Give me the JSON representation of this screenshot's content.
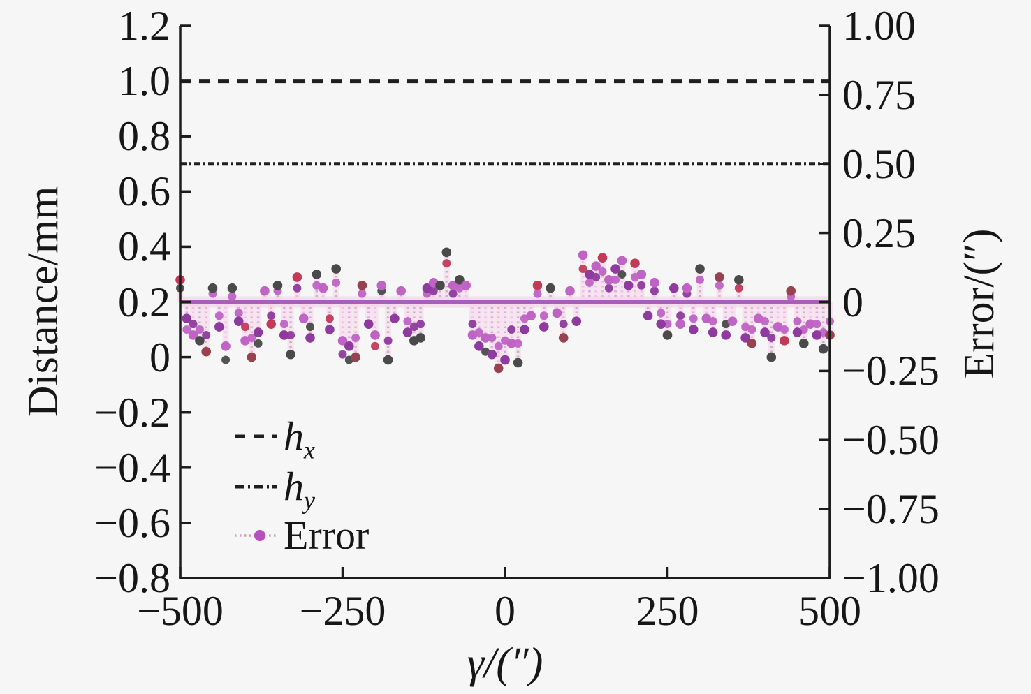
{
  "chart_data": {
    "type": "stem+lines",
    "xlabel": "γ/(″)",
    "ylabel_left": "Distance/mm",
    "ylabel_right": "Error/(″)",
    "xlim": [
      -500,
      500
    ],
    "ylim_left": [
      -0.8,
      1.2
    ],
    "ylim_right": [
      -1.0,
      1.0
    ],
    "grid": "off",
    "legend_position": "lower-left-inside",
    "xtick_labels": [
      "−500",
      "−250",
      "0",
      "250",
      "500"
    ],
    "ytick_labels_left": [
      "1.2",
      "1.0",
      "0.8",
      "0.6",
      "0.4",
      "0.2",
      "0",
      "−0.2",
      "−0.4",
      "−0.6",
      "−0.8"
    ],
    "ytick_labels_right": [
      "1.00",
      "0.75",
      "0.50",
      "0.25",
      "0",
      "−0.25",
      "−0.50",
      "−0.75",
      "−1.00"
    ],
    "hlines": [
      {
        "label": "h_x",
        "value_distance_mm": 1.0,
        "style": "dashed"
      },
      {
        "label": "h_y",
        "value_distance_mm": 0.7,
        "style": "dash-dot"
      }
    ],
    "legend": [
      {
        "main": "h",
        "sub": "x"
      },
      {
        "main": "h",
        "sub": "y"
      },
      {
        "main": "Error",
        "sub": ""
      }
    ],
    "error_stem": {
      "baseline_error_arcsec": 0,
      "note": "points are [gamma_arcsec, error_arcsec_tip, tip_color_index, error_arcsec_secondary, secondary_color_index]",
      "points": [
        [
          -500,
          0.08,
          1,
          0.05,
          0
        ],
        [
          -490,
          -0.06,
          2,
          -0.1,
          3
        ],
        [
          -480,
          -0.12,
          3,
          -0.08,
          2
        ],
        [
          -470,
          -0.14,
          0,
          -0.1,
          3
        ],
        [
          -460,
          -0.18,
          4,
          -0.12,
          2
        ],
        [
          -450,
          0.05,
          0,
          0.03,
          3
        ],
        [
          -440,
          -0.09,
          2,
          -0.05,
          3
        ],
        [
          -430,
          -0.16,
          3,
          -0.21,
          0
        ],
        [
          -420,
          0.05,
          0,
          0.02,
          3
        ],
        [
          -410,
          -0.07,
          2,
          -0.04,
          3
        ],
        [
          -400,
          -0.14,
          3,
          -0.09,
          1
        ],
        [
          -390,
          -0.2,
          4,
          -0.13,
          3
        ],
        [
          -380,
          -0.11,
          2,
          -0.15,
          0
        ],
        [
          -370,
          0.04,
          3,
          null,
          null
        ],
        [
          -360,
          -0.08,
          1,
          -0.05,
          2
        ],
        [
          -350,
          0.06,
          0,
          0.04,
          3
        ],
        [
          -340,
          -0.12,
          2,
          -0.08,
          3
        ],
        [
          -330,
          -0.19,
          0,
          -0.12,
          2
        ],
        [
          -320,
          0.09,
          1,
          0.05,
          2
        ],
        [
          -310,
          -0.06,
          3,
          null,
          null
        ],
        [
          -300,
          -0.13,
          2,
          -0.09,
          0
        ],
        [
          -290,
          0.1,
          0,
          0.06,
          3
        ],
        [
          -280,
          0.05,
          3,
          null,
          null
        ],
        [
          -270,
          -0.1,
          2,
          -0.06,
          1
        ],
        [
          -260,
          0.12,
          0,
          0.07,
          3
        ],
        [
          -250,
          -0.14,
          3,
          -0.19,
          2
        ],
        [
          -240,
          -0.16,
          2,
          -0.21,
          0
        ],
        [
          -230,
          -0.2,
          4,
          -0.13,
          3
        ],
        [
          -220,
          0.06,
          4,
          0.03,
          3
        ],
        [
          -210,
          -0.08,
          2,
          null,
          null
        ],
        [
          -200,
          -0.12,
          3,
          -0.16,
          1
        ],
        [
          -190,
          0.06,
          3,
          0.04,
          0
        ],
        [
          -180,
          -0.21,
          0,
          -0.14,
          2
        ],
        [
          -170,
          -0.06,
          2,
          null,
          null
        ],
        [
          -160,
          0.04,
          3,
          null,
          null
        ],
        [
          -150,
          -0.11,
          2,
          -0.07,
          3
        ],
        [
          -140,
          -0.14,
          0,
          -0.09,
          2
        ],
        [
          -130,
          -0.13,
          0,
          -0.08,
          2
        ],
        [
          -120,
          0.05,
          2,
          0.03,
          3
        ],
        [
          -110,
          0.07,
          3,
          0.04,
          2
        ],
        [
          -100,
          0.06,
          0,
          null,
          null
        ],
        [
          -90,
          0.18,
          0,
          0.14,
          1
        ],
        [
          -80,
          0.06,
          3,
          0.03,
          2
        ],
        [
          -70,
          0.08,
          0,
          0.05,
          3
        ],
        [
          -60,
          0.06,
          3,
          null,
          null
        ],
        [
          -50,
          -0.12,
          3,
          -0.08,
          2
        ],
        [
          -40,
          -0.16,
          2,
          -0.11,
          3
        ],
        [
          -30,
          -0.13,
          3,
          -0.18,
          0
        ],
        [
          -20,
          -0.19,
          2,
          -0.13,
          3
        ],
        [
          -10,
          -0.24,
          4,
          -0.16,
          3
        ],
        [
          0,
          -0.21,
          2,
          -0.14,
          3
        ],
        [
          10,
          -0.15,
          3,
          -0.1,
          2
        ],
        [
          20,
          -0.22,
          0,
          -0.15,
          3
        ],
        [
          30,
          -0.1,
          2,
          -0.06,
          3
        ],
        [
          40,
          -0.05,
          3,
          null,
          null
        ],
        [
          50,
          0.06,
          1,
          0.03,
          3
        ],
        [
          60,
          -0.09,
          2,
          -0.05,
          3
        ],
        [
          70,
          0.05,
          0,
          null,
          null
        ],
        [
          80,
          -0.04,
          3,
          null,
          null
        ],
        [
          90,
          -0.13,
          4,
          -0.08,
          2
        ],
        [
          100,
          0.04,
          3,
          null,
          null
        ],
        [
          110,
          -0.07,
          2,
          null,
          null
        ],
        [
          120,
          0.17,
          3,
          0.12,
          1
        ],
        [
          130,
          0.1,
          2,
          0.07,
          3
        ],
        [
          140,
          0.13,
          3,
          0.09,
          2
        ],
        [
          150,
          0.16,
          1,
          0.11,
          3
        ],
        [
          160,
          0.08,
          3,
          0.05,
          2
        ],
        [
          170,
          0.12,
          2,
          0.08,
          3
        ],
        [
          180,
          0.15,
          3,
          0.1,
          0
        ],
        [
          190,
          0.06,
          2,
          null,
          null
        ],
        [
          200,
          0.14,
          1,
          0.09,
          3
        ],
        [
          210,
          0.1,
          3,
          0.06,
          2
        ],
        [
          220,
          -0.05,
          2,
          null,
          null
        ],
        [
          230,
          0.07,
          3,
          0.04,
          2
        ],
        [
          240,
          -0.08,
          2,
          -0.04,
          3
        ],
        [
          250,
          -0.12,
          0,
          -0.08,
          3
        ],
        [
          260,
          0.05,
          2,
          null,
          null
        ],
        [
          270,
          -0.08,
          3,
          -0.05,
          2
        ],
        [
          280,
          0.05,
          3,
          0.03,
          2
        ],
        [
          290,
          -0.1,
          2,
          -0.06,
          3
        ],
        [
          300,
          0.12,
          0,
          0.08,
          3
        ],
        [
          310,
          -0.06,
          3,
          null,
          null
        ],
        [
          320,
          -0.11,
          2,
          -0.07,
          3
        ],
        [
          330,
          0.09,
          4,
          0.06,
          3
        ],
        [
          340,
          -0.12,
          2,
          -0.08,
          0
        ],
        [
          350,
          -0.07,
          3,
          null,
          null
        ],
        [
          360,
          0.08,
          0,
          0.05,
          1
        ],
        [
          370,
          -0.13,
          2,
          -0.09,
          3
        ],
        [
          380,
          -0.15,
          4,
          -0.1,
          3
        ],
        [
          390,
          -0.06,
          3,
          null,
          null
        ],
        [
          400,
          -0.11,
          2,
          -0.07,
          3
        ],
        [
          410,
          -0.2,
          0,
          -0.13,
          2
        ],
        [
          420,
          -0.09,
          3,
          null,
          null
        ],
        [
          430,
          -0.14,
          1,
          -0.1,
          3
        ],
        [
          440,
          0.04,
          4,
          0.02,
          3
        ],
        [
          450,
          -0.11,
          2,
          -0.07,
          3
        ],
        [
          460,
          -0.15,
          0,
          -0.1,
          3
        ],
        [
          470,
          -0.08,
          3,
          null,
          null
        ],
        [
          480,
          -0.12,
          2,
          -0.08,
          3
        ],
        [
          490,
          -0.17,
          0,
          -0.11,
          3
        ],
        [
          500,
          -0.12,
          4,
          -0.07,
          3
        ]
      ]
    }
  },
  "colors": {
    "background": "#f7f6f6",
    "axis": "#1c1c1c",
    "hx_line": "#1f1f1f",
    "hy_line": "#1f1f1f",
    "baseline": "#a95fb5",
    "baseline_halo": "#f0c4e0",
    "stem_halo": "#f6d4ea",
    "marker_palette": [
      "#4a4a4a",
      "#c23a58",
      "#8e3a9e",
      "#bf63c5",
      "#99414f"
    ],
    "stem_palette": [
      "#c2b8c2",
      "#f0b9cc",
      "#dcaade",
      "#ecc2ea",
      "#e8b7c6"
    ],
    "legend_error_dots": "#caa0c0",
    "legend_error_marker": "#b84fc0"
  }
}
